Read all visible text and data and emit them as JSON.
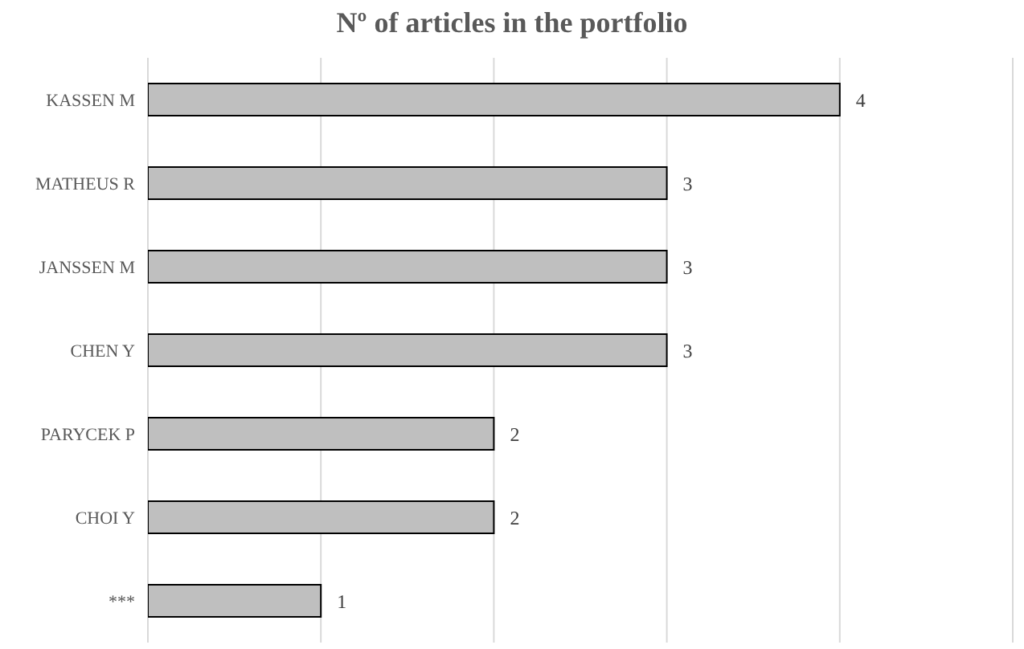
{
  "chart_data": {
    "type": "bar",
    "orientation": "horizontal",
    "title": "Nº of articles in the portfolio",
    "categories": [
      "KASSEN M",
      "MATHEUS R",
      "JANSSEN M",
      "CHEN Y",
      "PARYCEK P",
      "CHOI Y",
      "***"
    ],
    "values": [
      4,
      3,
      3,
      3,
      2,
      2,
      1
    ],
    "color": "#bfbfbf",
    "data_labels": true,
    "xlim": [
      0,
      5
    ],
    "grid": "x",
    "tick_labels": "y"
  }
}
